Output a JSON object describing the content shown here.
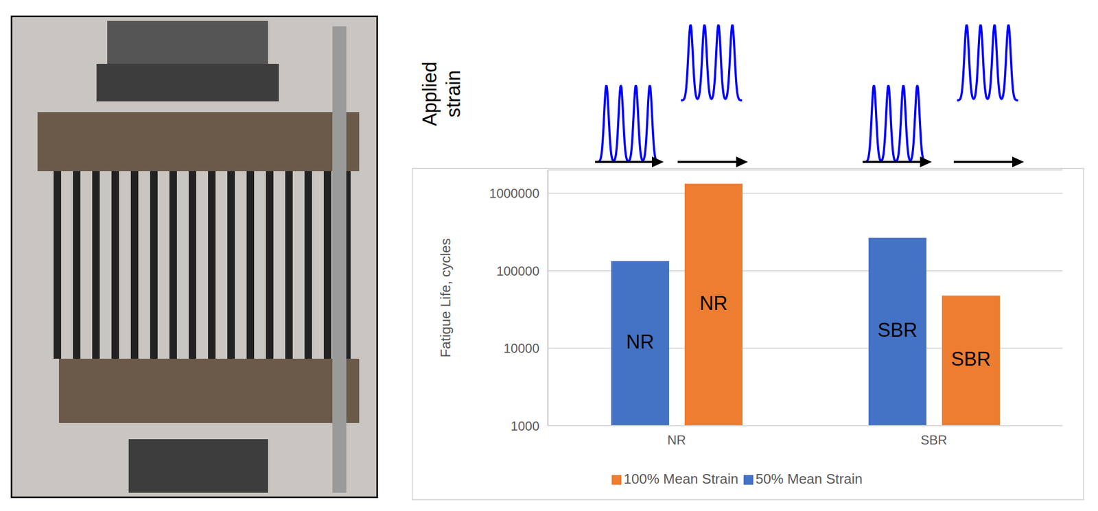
{
  "chart_data": {
    "type": "bar",
    "annotations": [
      "Applied strain"
    ],
    "y_label": "Fatigue Life, cycles",
    "categories": [
      "NR",
      "SBR"
    ],
    "series": [
      {
        "name": "50% Mean Strain",
        "color": "#4472c4",
        "values": [
          133000,
          266000
        ],
        "labels": [
          "NR",
          "SBR"
        ]
      },
      {
        "name": "100% Mean Strain",
        "color": "#ed7d31",
        "values": [
          1330000,
          47800
        ],
        "labels": [
          "NR",
          "SBR"
        ]
      }
    ],
    "ylim": [
      1000,
      2000000
    ],
    "yticks": [
      1000,
      10000,
      100000,
      1000000
    ],
    "log": "y",
    "grid": true,
    "legend": "bottom"
  }
}
